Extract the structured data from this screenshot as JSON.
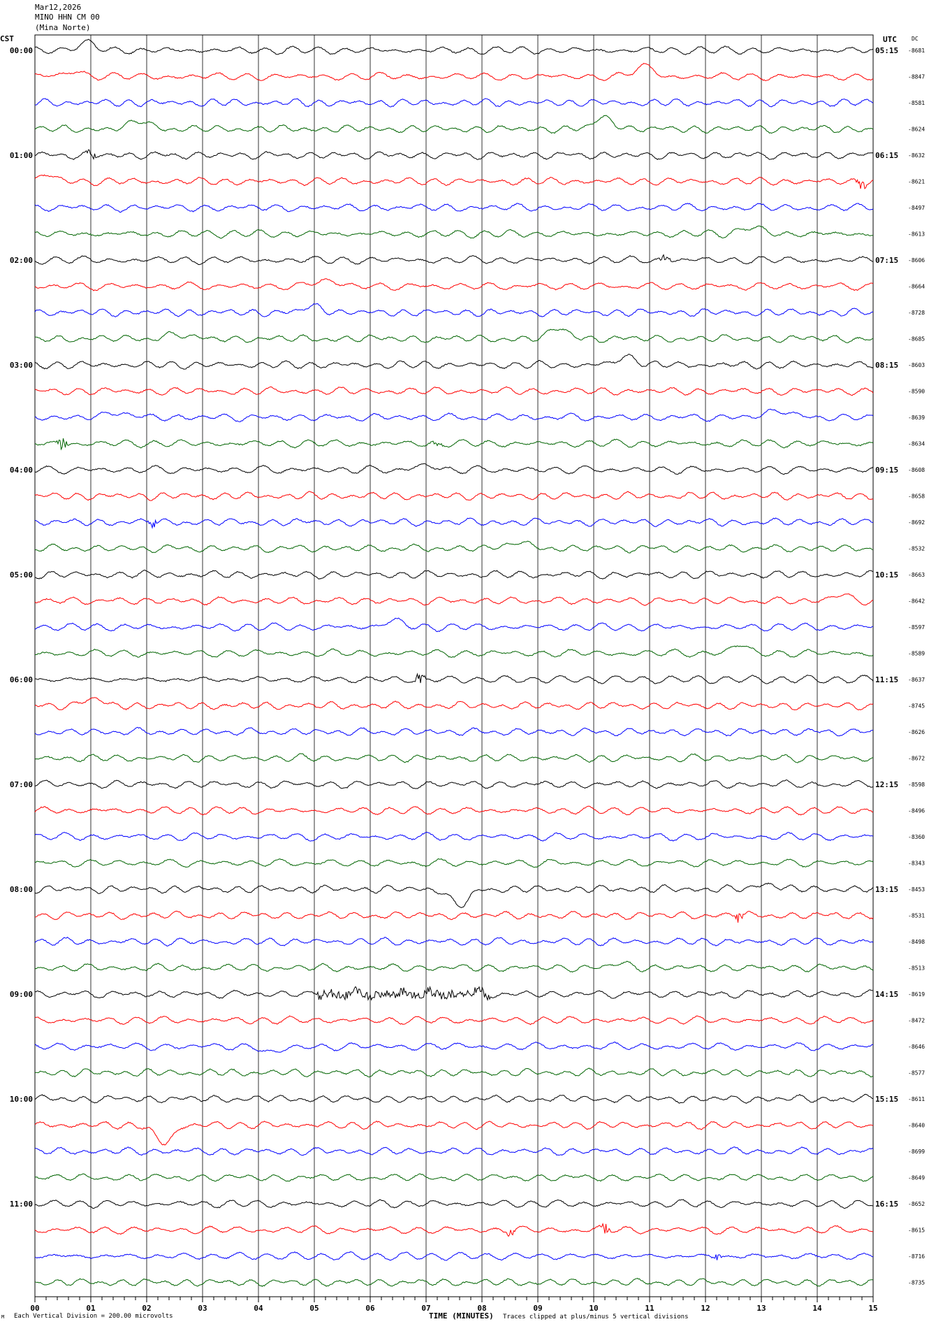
{
  "header": {
    "date": "Mar12,2026",
    "station": "MINO HHN CM 00",
    "location": "(Mina Norte)"
  },
  "left_axis_title": "CST",
  "right_axis_title": "UTC",
  "dc_label": "DC",
  "footer": {
    "scale": "Each Vertical Division =  200.00 microvolts",
    "xlabel": "TIME (MINUTES)",
    "clip": "Traces clipped at plus/minus 5 vertical divisions",
    "corner_mark": "M"
  },
  "colors": [
    "#000000",
    "#ff0000",
    "#0000ff",
    "#006400"
  ],
  "chart_data": {
    "type": "line",
    "title": "",
    "xlabel": "TIME (MINUTES)",
    "xlim": [
      0,
      15
    ],
    "xticks": [
      "00",
      "01",
      "02",
      "03",
      "04",
      "05",
      "06",
      "07",
      "08",
      "09",
      "10",
      "11",
      "12",
      "13",
      "14",
      "15"
    ],
    "left_hour_labels": [
      "00:00",
      "01:00",
      "02:00",
      "03:00",
      "04:00",
      "05:00",
      "06:00",
      "07:00",
      "08:00",
      "09:00",
      "10:00",
      "11:00"
    ],
    "right_hour_labels": [
      "05:15",
      "06:15",
      "07:15",
      "08:15",
      "09:15",
      "10:15",
      "11:15",
      "12:15",
      "13:15",
      "14:15",
      "15:15",
      "16:15"
    ],
    "dc_offsets": [
      "-8681",
      "-8847",
      "-8581",
      "-8624",
      "-8632",
      "-8621",
      "-8497",
      "-8613",
      "-8606",
      "-8664",
      "-8728",
      "-8685",
      "-8603",
      "-8590",
      "-8639",
      "-8634",
      "-8608",
      "-8658",
      "-8692",
      "-8532",
      "-8663",
      "-8642",
      "-8597",
      "-8589",
      "-8637",
      "-8745",
      "-8626",
      "-8672",
      "-8598",
      "-8496",
      "-8360",
      "-8343",
      "-8453",
      "-8531",
      "-8498",
      "-8513",
      "-8619",
      "-8472",
      "-8646",
      "-8577",
      "-8611",
      "-8640",
      "-8699",
      "-8649",
      "-8652",
      "-8615",
      "-8716",
      "-8735"
    ],
    "events": [
      {
        "trace": 0,
        "minute": 0.9,
        "kind": "bump",
        "amp": 10
      },
      {
        "trace": 1,
        "minute": 0.7,
        "kind": "bump",
        "amp": 8
      },
      {
        "trace": 1,
        "minute": 10.9,
        "kind": "bump",
        "amp": 14
      },
      {
        "trace": 3,
        "minute": 1.9,
        "kind": "bump",
        "amp": 12
      },
      {
        "trace": 3,
        "minute": 10.2,
        "kind": "bump",
        "amp": 16
      },
      {
        "trace": 4,
        "minute": 1.0,
        "kind": "burst",
        "amp": 9
      },
      {
        "trace": 5,
        "minute": 0.2,
        "kind": "bump",
        "amp": 8
      },
      {
        "trace": 5,
        "minute": 14.8,
        "kind": "burst",
        "amp": 9
      },
      {
        "trace": 7,
        "minute": 12.8,
        "kind": "bump",
        "amp": 10
      },
      {
        "trace": 8,
        "minute": 11.3,
        "kind": "burst",
        "amp": 12
      },
      {
        "trace": 9,
        "minute": 5.2,
        "kind": "bump",
        "amp": 10
      },
      {
        "trace": 10,
        "minute": 5.0,
        "kind": "bump",
        "amp": 9
      },
      {
        "trace": 11,
        "minute": 2.5,
        "kind": "bump",
        "amp": 7
      },
      {
        "trace": 11,
        "minute": 9.4,
        "kind": "bump",
        "amp": 14
      },
      {
        "trace": 12,
        "minute": 10.6,
        "kind": "bump",
        "amp": 12
      },
      {
        "trace": 14,
        "minute": 1.5,
        "kind": "bump",
        "amp": 8
      },
      {
        "trace": 14,
        "minute": 13.3,
        "kind": "bump",
        "amp": 12
      },
      {
        "trace": 15,
        "minute": 0.5,
        "kind": "burst",
        "amp": 10
      },
      {
        "trace": 15,
        "minute": 7.2,
        "kind": "burst",
        "amp": 7
      },
      {
        "trace": 16,
        "minute": 7.0,
        "kind": "bump",
        "amp": 6
      },
      {
        "trace": 18,
        "minute": 2.1,
        "kind": "burst",
        "amp": 8
      },
      {
        "trace": 19,
        "minute": 8.6,
        "kind": "bump",
        "amp": 10
      },
      {
        "trace": 21,
        "minute": 14.4,
        "kind": "bump",
        "amp": 8
      },
      {
        "trace": 22,
        "minute": 6.4,
        "kind": "bump",
        "amp": 9
      },
      {
        "trace": 23,
        "minute": 12.6,
        "kind": "bump",
        "amp": 10
      },
      {
        "trace": 24,
        "minute": 6.9,
        "kind": "burst",
        "amp": 14
      },
      {
        "trace": 25,
        "minute": 1.0,
        "kind": "bump",
        "amp": 10
      },
      {
        "trace": 32,
        "minute": 7.6,
        "kind": "dip",
        "amp": 24
      },
      {
        "trace": 32,
        "minute": 13.1,
        "kind": "bump",
        "amp": 8
      },
      {
        "trace": 33,
        "minute": 12.6,
        "kind": "burst",
        "amp": 9
      },
      {
        "trace": 35,
        "minute": 10.5,
        "kind": "bump",
        "amp": 6
      },
      {
        "trace": 36,
        "minute": 6.6,
        "kind": "longburst",
        "amp": 6
      },
      {
        "trace": 38,
        "minute": 4.3,
        "kind": "dip",
        "amp": 10
      },
      {
        "trace": 41,
        "minute": 2.3,
        "kind": "dip",
        "amp": 26
      },
      {
        "trace": 45,
        "minute": 8.5,
        "kind": "burst",
        "amp": 7
      },
      {
        "trace": 45,
        "minute": 10.2,
        "kind": "burst",
        "amp": 10
      },
      {
        "trace": 46,
        "minute": 12.2,
        "kind": "burst",
        "amp": 5
      }
    ]
  }
}
